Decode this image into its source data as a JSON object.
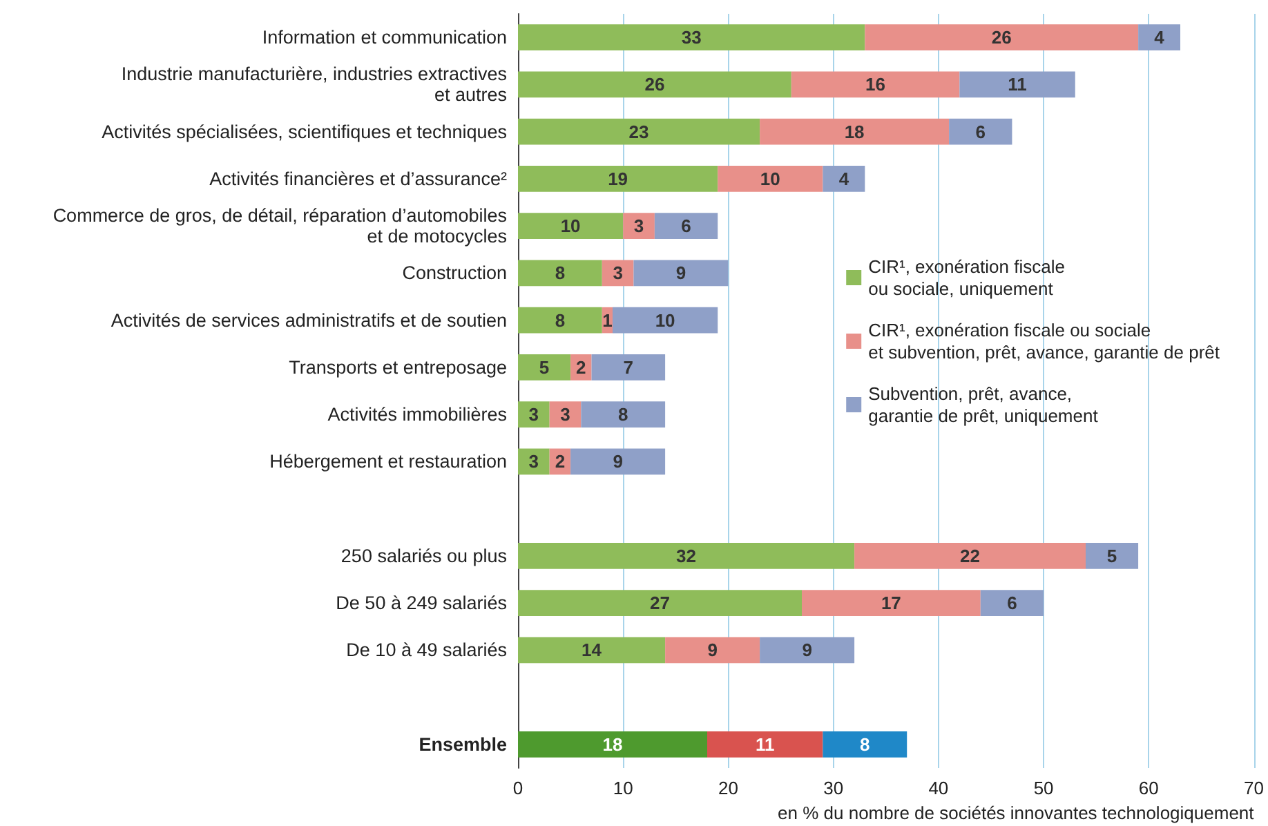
{
  "chart_data": {
    "type": "bar",
    "orientation": "horizontal",
    "stacked": true,
    "data_labels": true,
    "grid": "x",
    "legend": "right",
    "xlabel": "en % du nombre de sociétés innovantes technologiquement",
    "categories": [
      "Information et communication",
      "Industrie manufacturière, industries extractives\net autres",
      "Activités spécialisées, scientifiques et techniques",
      "Activités financières et d’assurance²",
      "Commerce de gros, de détail, réparation d’automobiles\net de motocycles",
      "Construction",
      "Activités de services administratifs et de soutien",
      "Transports et entreposage",
      "Activités immobilières",
      "Hébergement et restauration",
      null,
      "250 salariés ou plus",
      "De 50 à 249 salariés",
      "De 10 à 49 salariés",
      null,
      "Ensemble"
    ],
    "xlim": [
      0,
      70
    ],
    "xticks": [
      0,
      10,
      20,
      30,
      40,
      50,
      60,
      70
    ],
    "series": [
      {
        "name": "CIR¹, exonération fiscale\nou sociale, uniquement",
        "color": "#8fbc5a",
        "values": [
          33,
          26,
          23,
          19,
          10,
          8,
          8,
          5,
          3,
          3,
          null,
          32,
          27,
          14,
          null,
          18
        ],
        "colors": [
          "#8fbc5a",
          "#8fbc5a",
          "#8fbc5a",
          "#8fbc5a",
          "#8fbc5a",
          "#8fbc5a",
          "#8fbc5a",
          "#8fbc5a",
          "#8fbc5a",
          "#8fbc5a",
          "#8fbc5a",
          "#8fbc5a",
          "#8fbc5a",
          "#8fbc5a",
          "#8fbc5a",
          "#4e9a2e"
        ]
      },
      {
        "name": "CIR¹, exonération fiscale ou sociale\net subvention, prêt, avance, garantie de prêt",
        "color": "#e8908a",
        "values": [
          26,
          16,
          18,
          10,
          3,
          3,
          1,
          2,
          3,
          2,
          null,
          22,
          17,
          9,
          null,
          11
        ],
        "colors": [
          "#e8908a",
          "#e8908a",
          "#e8908a",
          "#e8908a",
          "#e8908a",
          "#e8908a",
          "#e8908a",
          "#e8908a",
          "#e8908a",
          "#e8908a",
          "#e8908a",
          "#e8908a",
          "#e8908a",
          "#e8908a",
          "#e8908a",
          "#d9534f"
        ]
      },
      {
        "name": "Subvention, prêt, avance,\ngarantie de prêt, uniquement",
        "color": "#8fa0c8",
        "values": [
          4,
          11,
          6,
          4,
          6,
          9,
          10,
          7,
          8,
          9,
          null,
          5,
          6,
          9,
          null,
          8
        ],
        "colors": [
          "#8fa0c8",
          "#8fa0c8",
          "#8fa0c8",
          "#8fa0c8",
          "#8fa0c8",
          "#8fa0c8",
          "#8fa0c8",
          "#8fa0c8",
          "#8fa0c8",
          "#8fa0c8",
          "#8fa0c8",
          "#8fa0c8",
          "#8fa0c8",
          "#8fa0c8",
          "#8fa0c8",
          "#1f88c8"
        ]
      }
    ]
  }
}
